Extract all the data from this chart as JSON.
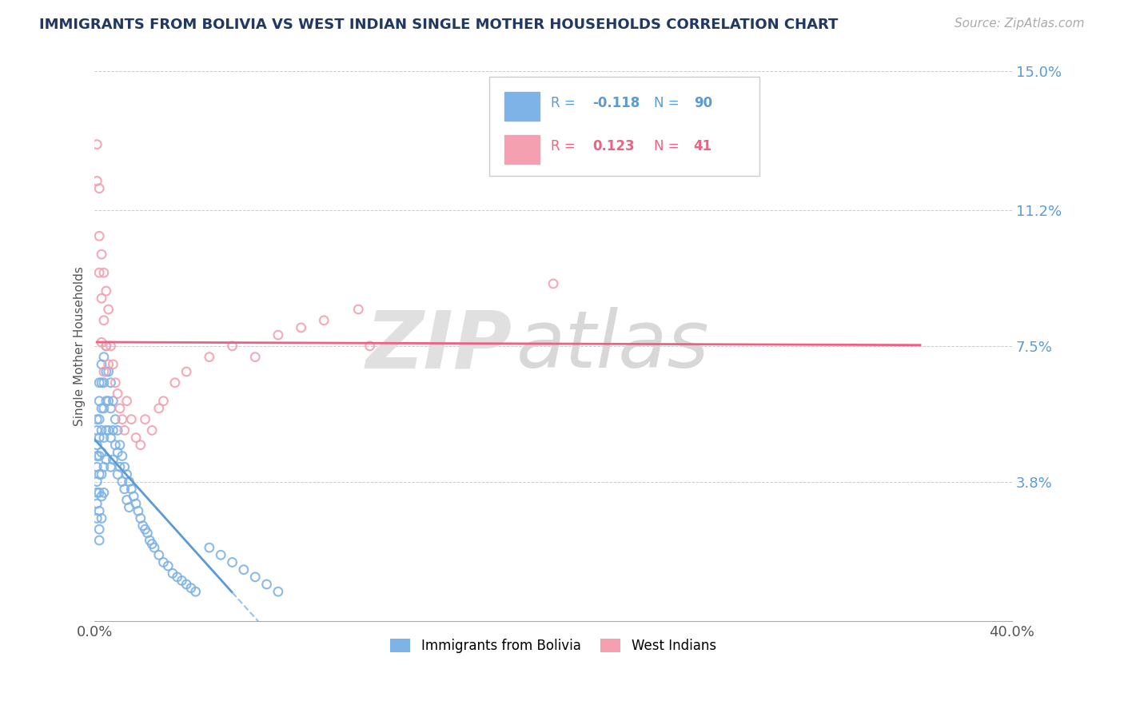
{
  "title": "IMMIGRANTS FROM BOLIVIA VS WEST INDIAN SINGLE MOTHER HOUSEHOLDS CORRELATION CHART",
  "source_text": "Source: ZipAtlas.com",
  "ylabel": "Single Mother Households",
  "xlim": [
    0.0,
    0.4
  ],
  "ylim": [
    0.0,
    0.15
  ],
  "ytick_labels": [
    "",
    "3.8%",
    "7.5%",
    "11.2%",
    "15.0%"
  ],
  "ytick_values": [
    0.0,
    0.038,
    0.075,
    0.112,
    0.15
  ],
  "xtick_values": [
    0.0,
    0.05,
    0.1,
    0.15,
    0.2,
    0.25,
    0.3,
    0.35,
    0.4
  ],
  "xtick_labels": [
    "0.0%",
    "",
    "",
    "",
    "",
    "",
    "",
    "",
    "40.0%"
  ],
  "legend_label1": "Immigrants from Bolivia",
  "legend_label2": "West Indians",
  "R1": -0.118,
  "N1": 90,
  "R2": 0.123,
  "N2": 41,
  "color1": "#7EB3E8",
  "color2": "#F4A0B0",
  "trendline1_solid_color": "#5B9BD5",
  "trendline1_dash_color": "#99C4EA",
  "trendline2_color": "#F06080",
  "bolivia_x": [
    0.001,
    0.001,
    0.001,
    0.001,
    0.001,
    0.001,
    0.001,
    0.001,
    0.001,
    0.002,
    0.002,
    0.002,
    0.002,
    0.002,
    0.002,
    0.002,
    0.002,
    0.002,
    0.002,
    0.003,
    0.003,
    0.003,
    0.003,
    0.003,
    0.003,
    0.003,
    0.003,
    0.004,
    0.004,
    0.004,
    0.004,
    0.004,
    0.004,
    0.005,
    0.005,
    0.005,
    0.005,
    0.005,
    0.006,
    0.006,
    0.006,
    0.007,
    0.007,
    0.007,
    0.007,
    0.008,
    0.008,
    0.008,
    0.009,
    0.009,
    0.01,
    0.01,
    0.01,
    0.011,
    0.011,
    0.012,
    0.012,
    0.013,
    0.013,
    0.014,
    0.014,
    0.015,
    0.015,
    0.016,
    0.017,
    0.018,
    0.019,
    0.02,
    0.021,
    0.022,
    0.023,
    0.024,
    0.025,
    0.026,
    0.028,
    0.03,
    0.032,
    0.034,
    0.036,
    0.038,
    0.04,
    0.042,
    0.044,
    0.05,
    0.055,
    0.06,
    0.065,
    0.07,
    0.075,
    0.08
  ],
  "bolivia_y": [
    0.055,
    0.052,
    0.048,
    0.045,
    0.042,
    0.038,
    0.035,
    0.032,
    0.028,
    0.065,
    0.06,
    0.055,
    0.05,
    0.045,
    0.04,
    0.035,
    0.03,
    0.025,
    0.022,
    0.07,
    0.065,
    0.058,
    0.052,
    0.046,
    0.04,
    0.034,
    0.028,
    0.072,
    0.065,
    0.058,
    0.05,
    0.042,
    0.035,
    0.075,
    0.068,
    0.06,
    0.052,
    0.044,
    0.068,
    0.06,
    0.052,
    0.065,
    0.058,
    0.05,
    0.042,
    0.06,
    0.052,
    0.044,
    0.055,
    0.048,
    0.052,
    0.046,
    0.04,
    0.048,
    0.042,
    0.045,
    0.038,
    0.042,
    0.036,
    0.04,
    0.033,
    0.038,
    0.031,
    0.036,
    0.034,
    0.032,
    0.03,
    0.028,
    0.026,
    0.025,
    0.024,
    0.022,
    0.021,
    0.02,
    0.018,
    0.016,
    0.015,
    0.013,
    0.012,
    0.011,
    0.01,
    0.009,
    0.008,
    0.02,
    0.018,
    0.016,
    0.014,
    0.012,
    0.01,
    0.008
  ],
  "westindian_x": [
    0.001,
    0.001,
    0.002,
    0.002,
    0.002,
    0.003,
    0.003,
    0.003,
    0.004,
    0.004,
    0.004,
    0.005,
    0.005,
    0.006,
    0.006,
    0.007,
    0.008,
    0.009,
    0.01,
    0.011,
    0.012,
    0.013,
    0.014,
    0.016,
    0.018,
    0.02,
    0.022,
    0.025,
    0.028,
    0.03,
    0.035,
    0.04,
    0.05,
    0.06,
    0.07,
    0.08,
    0.09,
    0.1,
    0.115,
    0.12,
    0.2
  ],
  "westindian_y": [
    0.13,
    0.12,
    0.118,
    0.105,
    0.095,
    0.1,
    0.088,
    0.076,
    0.095,
    0.082,
    0.068,
    0.09,
    0.075,
    0.085,
    0.07,
    0.075,
    0.07,
    0.065,
    0.062,
    0.058,
    0.055,
    0.052,
    0.06,
    0.055,
    0.05,
    0.048,
    0.055,
    0.052,
    0.058,
    0.06,
    0.065,
    0.068,
    0.072,
    0.075,
    0.072,
    0.078,
    0.08,
    0.082,
    0.085,
    0.075,
    0.092
  ]
}
